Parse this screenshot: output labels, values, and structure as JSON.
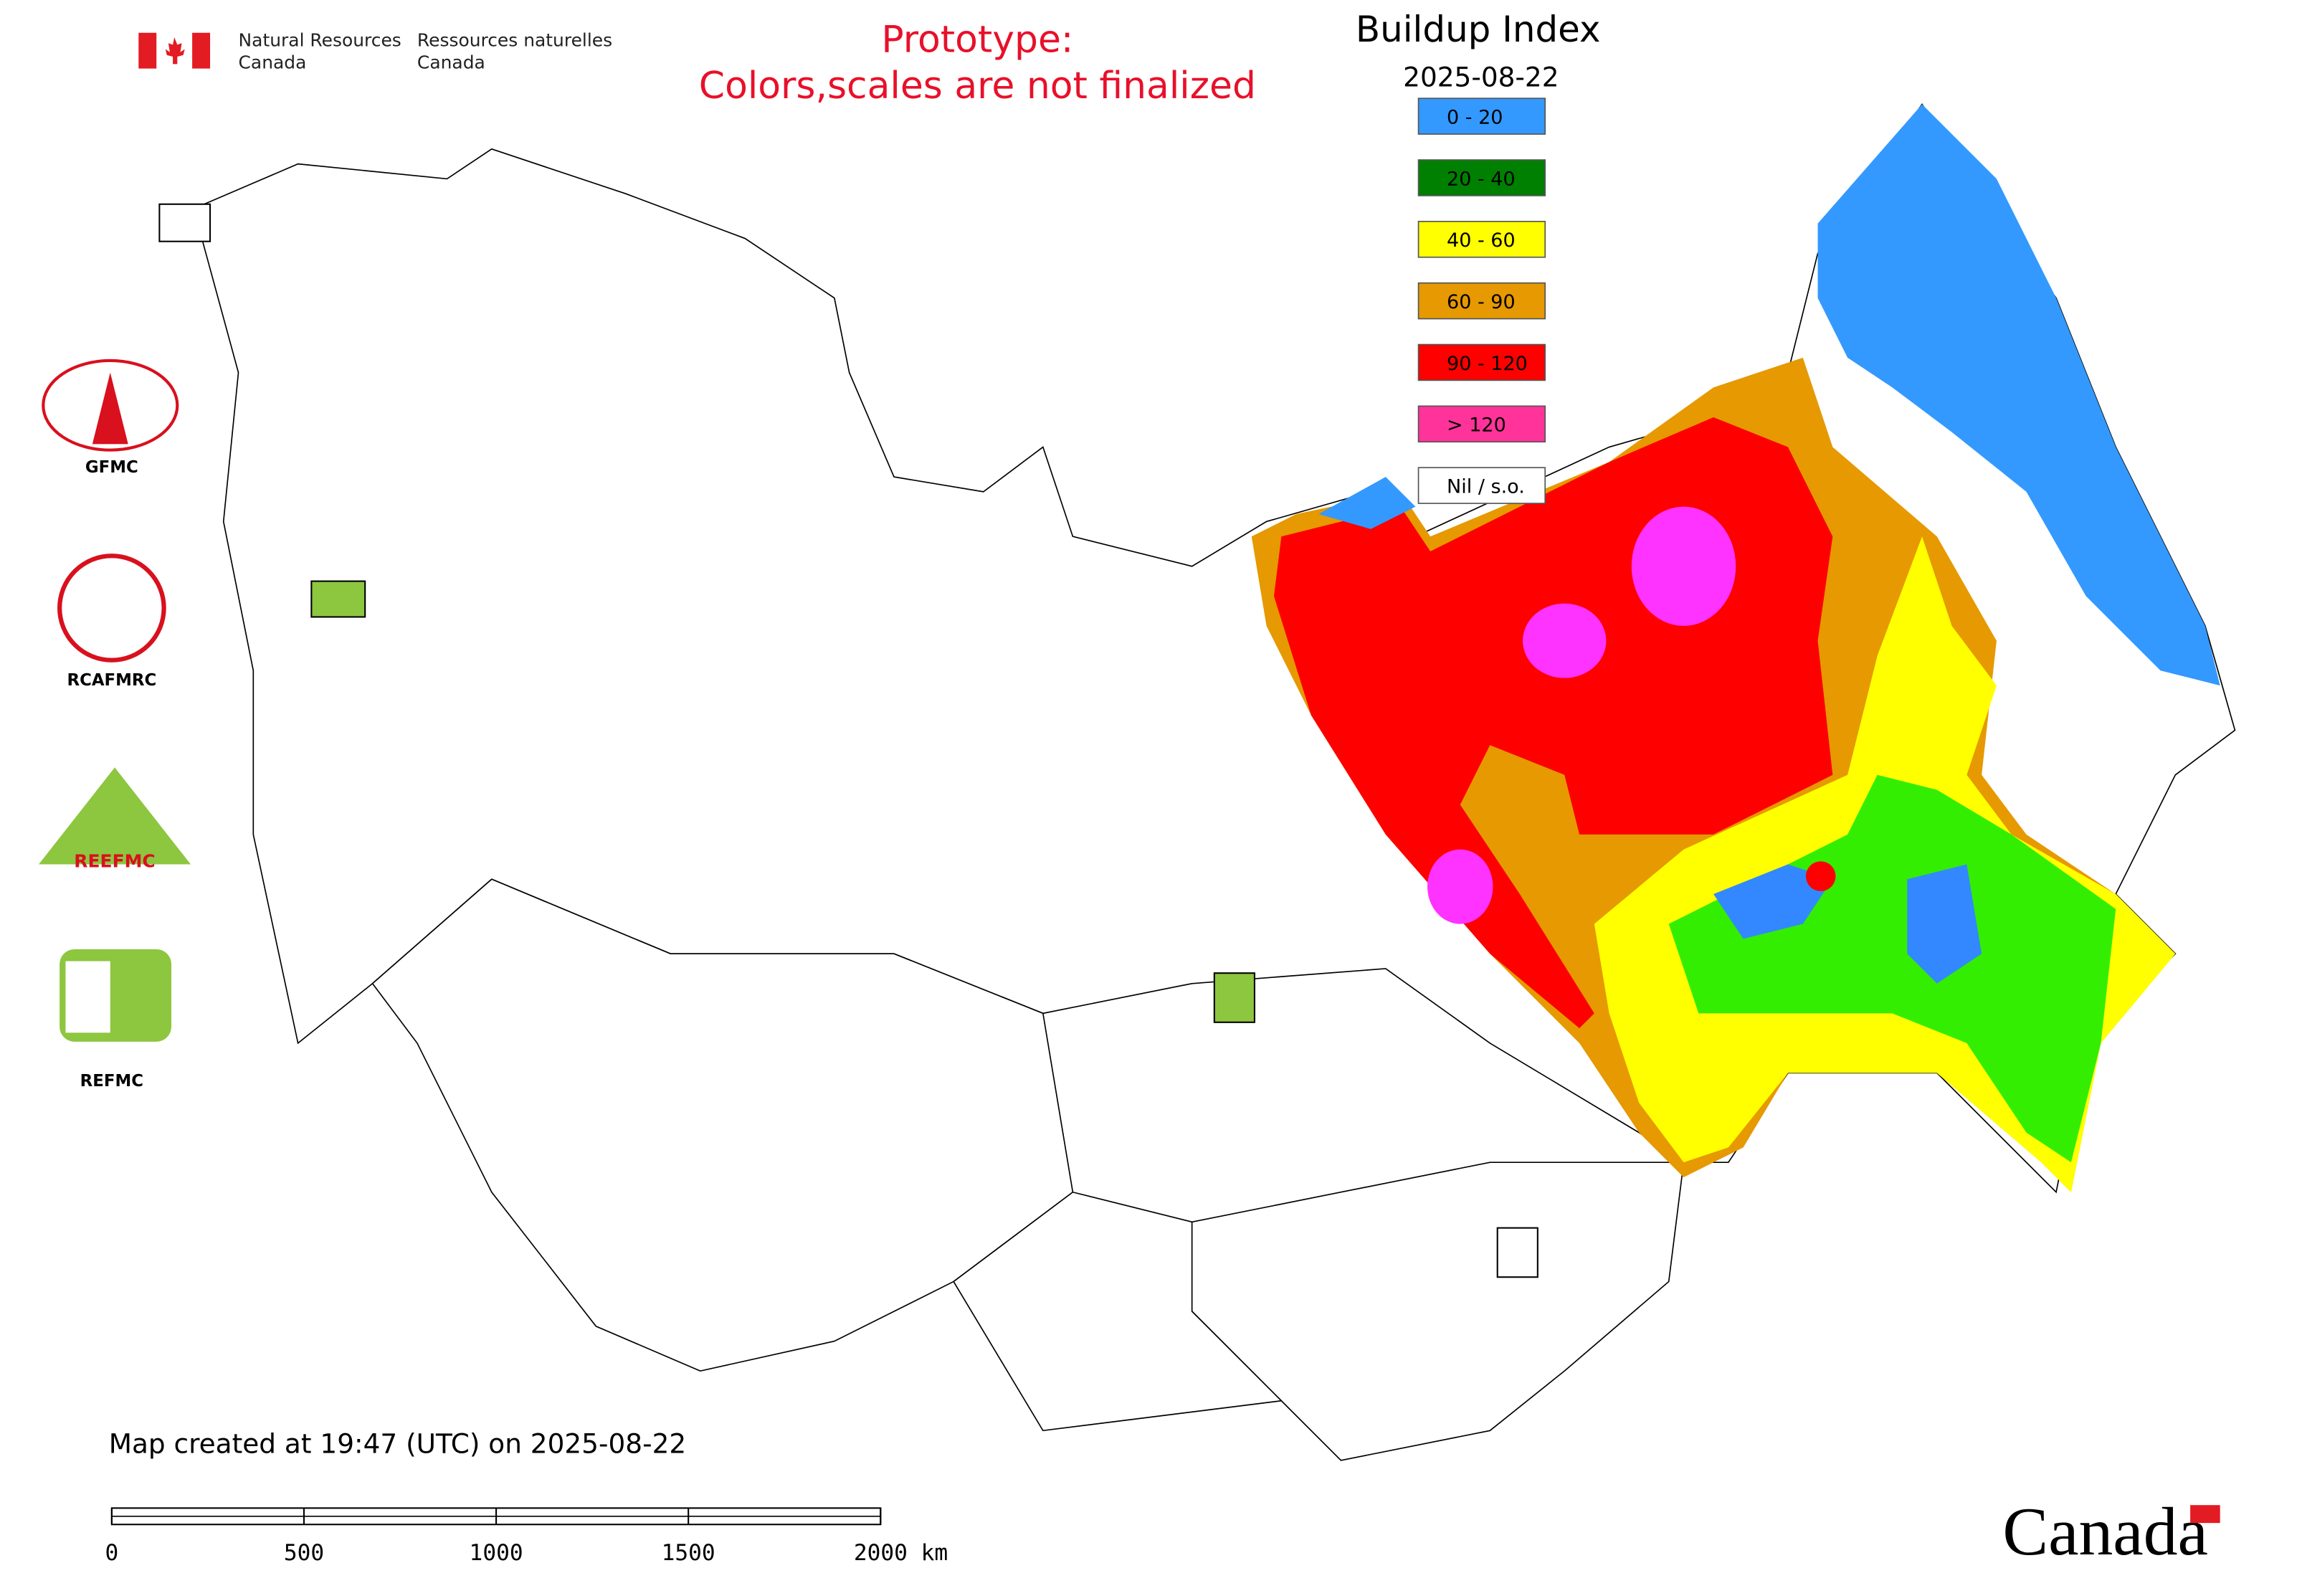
{
  "header": {
    "agency_en": [
      "Natural Resources",
      "Canada"
    ],
    "agency_fr": [
      "Ressources naturelles",
      "Canada"
    ],
    "notice": [
      "Prototype:",
      "Colors,scales are not finalized"
    ]
  },
  "legend": {
    "title": "Buildup Index",
    "date": "2025-08-22",
    "items": [
      {
        "label": "0 - 20",
        "color": "#3399ff"
      },
      {
        "label": "20 - 40",
        "color": "#008000"
      },
      {
        "label": "40 - 60",
        "color": "#ffff00"
      },
      {
        "label": "60 - 90",
        "color": "#e69900"
      },
      {
        "label": "90 - 120",
        "color": "#ff0000"
      },
      {
        "label": "> 120",
        "color": "#ff3399"
      },
      {
        "label": "Nil / s.o.",
        "color": "#ffffff"
      }
    ]
  },
  "logos": [
    "GFMC",
    "RCAFMRC",
    "REEFMC",
    "REFMC"
  ],
  "footer": {
    "created": "Map created at 19:47 (UTC) on 2025-08-22",
    "wordmark": "Canada"
  },
  "scale_bar": {
    "range": [
      0,
      2000
    ],
    "ticks": [
      0,
      500,
      1000,
      1500,
      {
        "value": 2000,
        "label": "2000 km"
      }
    ]
  }
}
